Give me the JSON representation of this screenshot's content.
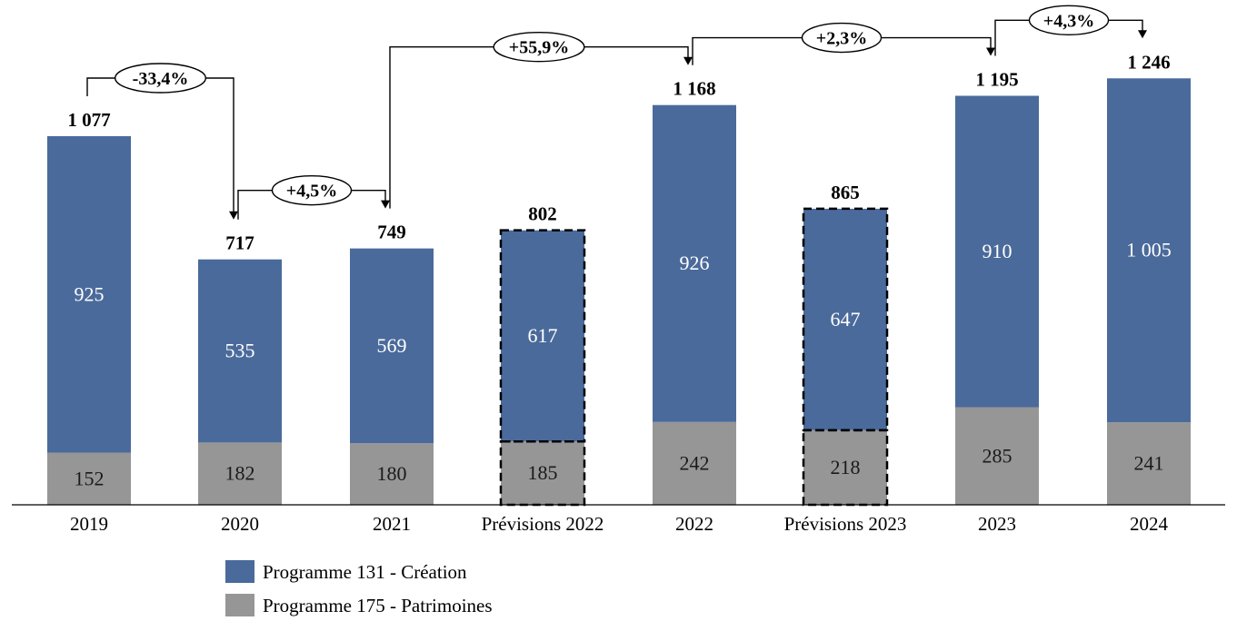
{
  "chart_data": {
    "type": "bar",
    "stacked": true,
    "categories": [
      "2019",
      "2020",
      "2021",
      "Prévisions 2022",
      "2022",
      "Prévisions 2023",
      "2023",
      "2024"
    ],
    "series": [
      {
        "name": "Programme 175 - Patrimoines",
        "values": [
          152,
          182,
          180,
          185,
          242,
          218,
          285,
          241
        ],
        "color": "#969696"
      },
      {
        "name": "Programme 131 - Création",
        "values": [
          925,
          535,
          569,
          617,
          926,
          647,
          910,
          1005
        ],
        "color": "#4a6a9b"
      }
    ],
    "value_labels": {
      "Programme 175 - Patrimoines": [
        "152",
        "182",
        "180",
        "185",
        "242",
        "218",
        "285",
        "241"
      ],
      "Programme 131 - Création": [
        "925",
        "535",
        "569",
        "617",
        "926",
        "647",
        "910",
        "1 005"
      ]
    },
    "totals": [
      "1 077",
      "717",
      "749",
      "802",
      "1 168",
      "865",
      "1 195",
      "1 246"
    ],
    "total_values": [
      1077,
      717,
      749,
      802,
      1168,
      865,
      1195,
      1246
    ],
    "forecast_categories": [
      "Prévisions 2022",
      "Prévisions 2023"
    ],
    "changes": [
      {
        "from": "2019",
        "to": "2020",
        "label": "-33,4%"
      },
      {
        "from": "2020",
        "to": "2021",
        "label": "+4,5%"
      },
      {
        "from": "2021",
        "to": "2022",
        "label": "+55,9%"
      },
      {
        "from": "2022",
        "to": "2023",
        "label": "+2,3%"
      },
      {
        "from": "2023",
        "to": "2024",
        "label": "+4,3%"
      }
    ],
    "legend_position": "bottom-left",
    "ylim": [
      0,
      1300
    ],
    "grid": false,
    "title": "",
    "xlabel": "",
    "ylabel": ""
  }
}
